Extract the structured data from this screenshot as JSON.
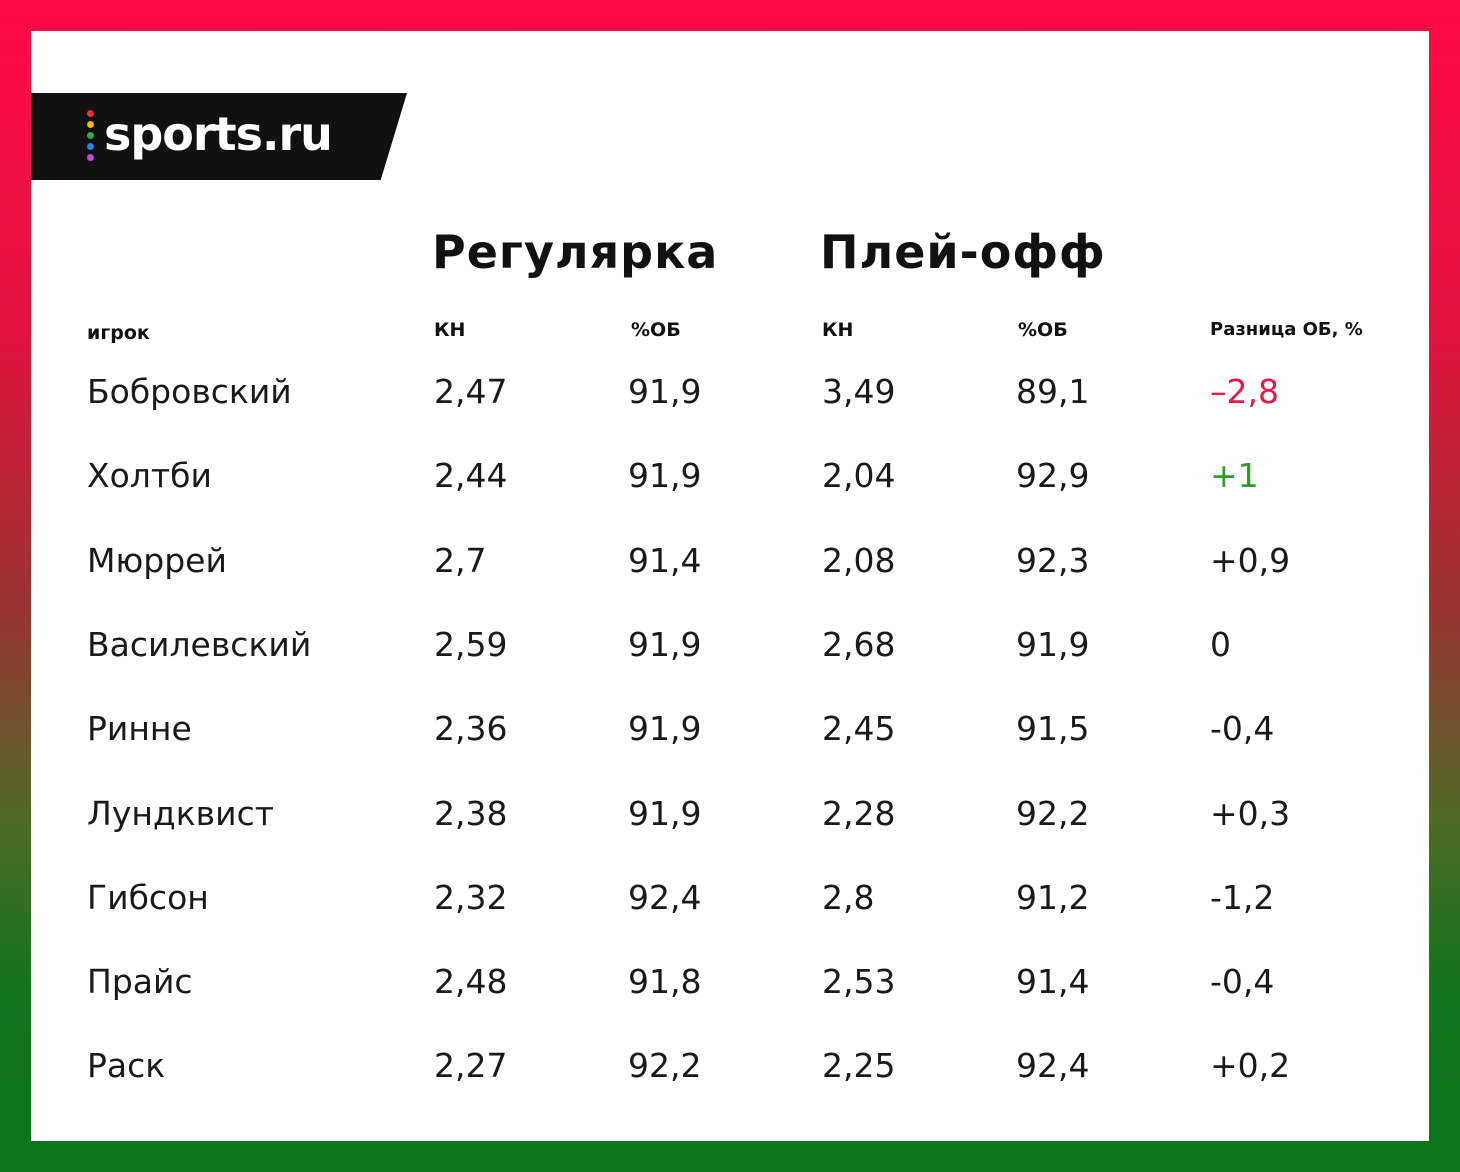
{
  "brand": {
    "name": "sports.ru",
    "dot_colors": [
      "#ff2a2a",
      "#ffb400",
      "#2bb04a",
      "#2a7fff",
      "#c04ad0"
    ]
  },
  "groups": {
    "regular": "Регулярка",
    "playoff": "Плей-офф"
  },
  "columns": {
    "player": "игрок",
    "reg_gaa": "КН",
    "reg_sv": "%ОБ",
    "po_gaa": "КН",
    "po_sv": "%ОБ",
    "diff": "Разница ОБ, %"
  },
  "colors": {
    "negative": "#e8174a",
    "positive": "#2a9d2a",
    "text": "#1a1a1a"
  },
  "rows": [
    {
      "player": "Бобровский",
      "reg_gaa": "2,47",
      "reg_sv": "91,9",
      "po_gaa": "3,49",
      "po_sv": "89,1",
      "diff": "–2,8",
      "diff_style": "negative"
    },
    {
      "player": "Холтби",
      "reg_gaa": "2,44",
      "reg_sv": "91,9",
      "po_gaa": "2,04",
      "po_sv": "92,9",
      "diff": "+1",
      "diff_style": "positive"
    },
    {
      "player": "Мюррей",
      "reg_gaa": "2,7",
      "reg_sv": "91,4",
      "po_gaa": "2,08",
      "po_sv": "92,3",
      "diff": "+0,9",
      "diff_style": "normal"
    },
    {
      "player": "Василевский",
      "reg_gaa": "2,59",
      "reg_sv": "91,9",
      "po_gaa": "2,68",
      "po_sv": "91,9",
      "diff": "0",
      "diff_style": "normal"
    },
    {
      "player": "Ринне",
      "reg_gaa": "2,36",
      "reg_sv": "91,9",
      "po_gaa": "2,45",
      "po_sv": "91,5",
      "diff": "-0,4",
      "diff_style": "normal"
    },
    {
      "player": "Лундквист",
      "reg_gaa": "2,38",
      "reg_sv": "91,9",
      "po_gaa": "2,28",
      "po_sv": "92,2",
      "diff": "+0,3",
      "diff_style": "normal"
    },
    {
      "player": "Гибсон",
      "reg_gaa": "2,32",
      "reg_sv": "92,4",
      "po_gaa": "2,8",
      "po_sv": "91,2",
      "diff": "-1,2",
      "diff_style": "normal"
    },
    {
      "player": "Прайс",
      "reg_gaa": "2,48",
      "reg_sv": "91,8",
      "po_gaa": "2,53",
      "po_sv": "91,4",
      "diff": "-0,4",
      "diff_style": "normal"
    },
    {
      "player": "Раск",
      "reg_gaa": "2,27",
      "reg_sv": "92,2",
      "po_gaa": "2,25",
      "po_sv": "92,4",
      "diff": "+0,2",
      "diff_style": "normal"
    }
  ]
}
